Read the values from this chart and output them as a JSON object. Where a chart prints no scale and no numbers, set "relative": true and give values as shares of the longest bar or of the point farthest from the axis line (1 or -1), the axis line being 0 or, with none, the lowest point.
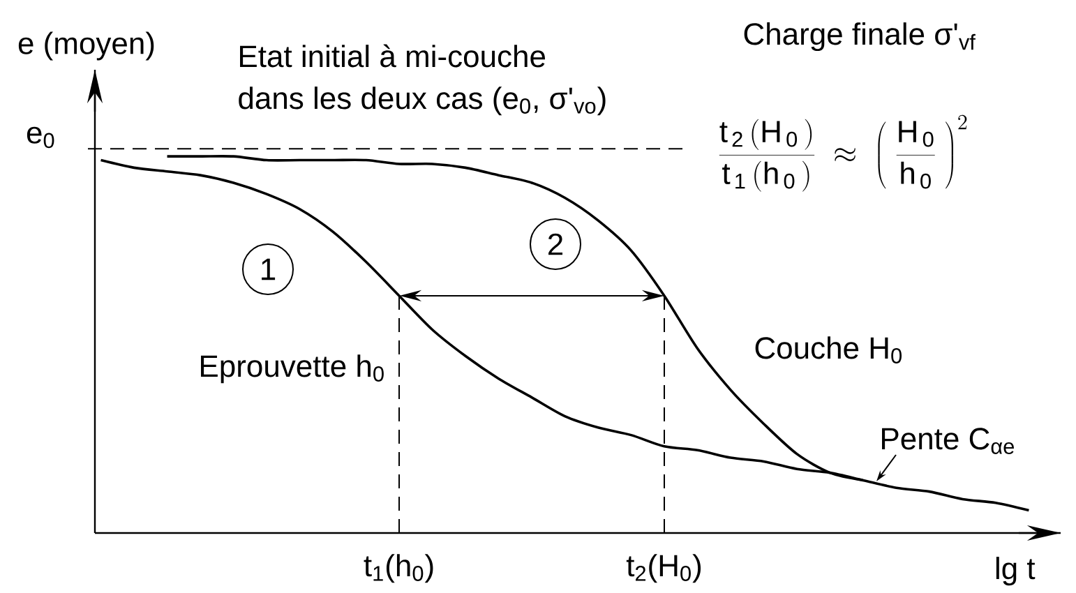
{
  "chart_data": {
    "type": "line",
    "relative": true,
    "xlabel": "lg t",
    "ylabel": "e (moyen)",
    "categories": [
      null,
      null,
      null,
      null,
      null,
      null,
      null,
      null,
      null,
      "t$_{1}$(h$_{0}$)",
      null,
      null,
      null,
      null,
      null,
      null,
      null,
      "t$_{2}$(H$_{0}$)",
      null,
      null,
      null,
      null,
      null,
      null,
      null,
      null,
      null,
      null,
      null
    ],
    "series": [
      {
        "name": "Eprouvette h$_{0}$",
        "color": "#000000",
        "values": [
          0.99,
          0.97,
          0.96,
          0.95,
          0.93,
          0.9,
          0.86,
          0.8,
          0.72,
          0.63,
          0.54,
          0.47,
          0.41,
          0.36,
          0.31,
          0.28,
          0.26,
          0.23,
          0.22,
          0.2,
          0.19,
          0.17,
          0.16,
          0.14,
          0.12,
          0.11,
          0.09,
          0.08,
          0.06
        ]
      },
      {
        "name": "Couche H$_{0}$",
        "color": "#000000",
        "values": [
          null,
          null,
          1.0,
          1.0,
          1.0,
          0.99,
          0.99,
          0.99,
          0.99,
          0.98,
          0.98,
          0.97,
          0.95,
          0.93,
          0.89,
          0.83,
          0.75,
          0.63,
          0.49,
          0.38,
          0.29,
          0.21,
          0.16,
          0.14,
          null,
          null,
          null,
          null,
          null
        ]
      }
    ],
    "ref_lines": [
      {
        "axis": "y",
        "value": 1.02,
        "label": "e$_{0}$",
        "line_style": "dashed",
        "color": "#000000"
      },
      {
        "axis": "x",
        "value": "t$_{1}$(h$_{0}$)",
        "line_style": "dashed",
        "color": "#000000"
      },
      {
        "axis": "x",
        "value": "t$_{2}$(H$_{0}$)",
        "line_style": "dashed",
        "color": "#000000"
      }
    ],
    "annotations": [
      "Etat initial à mi-couche",
      "dans les deux cas (e$_{0}$, σ'$_{vo}$)",
      "Charge finale σ'$_{vf}$",
      "\\frac{\\mathrm{t_{\\,2}\\,(H_{\\,0}\\,)}}{\\mathrm{t_{\\,1}\\,(h_{\\,0}\\,)}}\\;\\approx\\;\\left(\\;\\frac{\\mathrm{H_{\\,0}}}{\\mathrm{h_{\\,0}}}\\;\\right)^{2}",
      "1",
      "2",
      "Pente C$_{αe}$"
    ]
  }
}
